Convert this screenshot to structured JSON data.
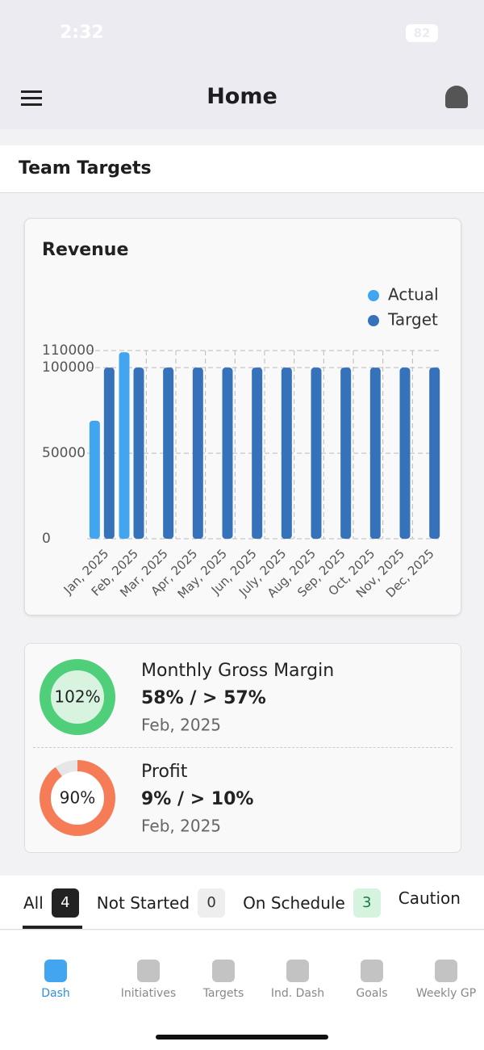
{
  "status_bar": {
    "time": "2:32",
    "battery": "82"
  },
  "header": {
    "title": "Home"
  },
  "section": {
    "title": "Team Targets"
  },
  "chart_data": {
    "type": "bar",
    "title": "Revenue",
    "categories": [
      "Jan, 2025",
      "Feb, 2025",
      "Mar, 2025",
      "Apr, 2025",
      "May, 2025",
      "Jun, 2025",
      "July, 2025",
      "Aug, 2025",
      "Sep, 2025",
      "Oct, 2025",
      "Nov, 2025",
      "Dec, 2025"
    ],
    "series": [
      {
        "name": "Actual",
        "color": "#42a5f0",
        "values": [
          69000,
          109000,
          null,
          null,
          null,
          null,
          null,
          null,
          null,
          null,
          null,
          null
        ]
      },
      {
        "name": "Target",
        "color": "#3572b9",
        "values": [
          100000,
          100000,
          100000,
          100000,
          100000,
          100000,
          100000,
          100000,
          100000,
          100000,
          100000,
          100000
        ]
      }
    ],
    "ylim": [
      0,
      110000
    ],
    "yticks": [
      0,
      50000,
      100000,
      110000
    ],
    "grid": true,
    "legend": "top-right"
  },
  "kpis": [
    {
      "progress": 102,
      "progress_label": "102%",
      "title": "Monthly Gross Margin",
      "value_text": "58% / > 57%",
      "date": "Feb, 2025",
      "color": "#4fcf7a",
      "inner": "#d9f3e1"
    },
    {
      "progress": 90,
      "progress_label": "90%",
      "title": "Profit",
      "value_text": "9% / > 10%",
      "date": "Feb, 2025",
      "color": "#f67c57",
      "inner": "#ffffff"
    }
  ],
  "tabs": [
    {
      "label": "All",
      "count": "4"
    },
    {
      "label": "Not Started",
      "count": "0"
    },
    {
      "label": "On Schedule",
      "count": "3"
    },
    {
      "label": "Caution"
    }
  ],
  "nav": [
    "Dash",
    "Initiatives",
    "Targets",
    "Ind. Dash",
    "Goals",
    "Weekly GP"
  ]
}
